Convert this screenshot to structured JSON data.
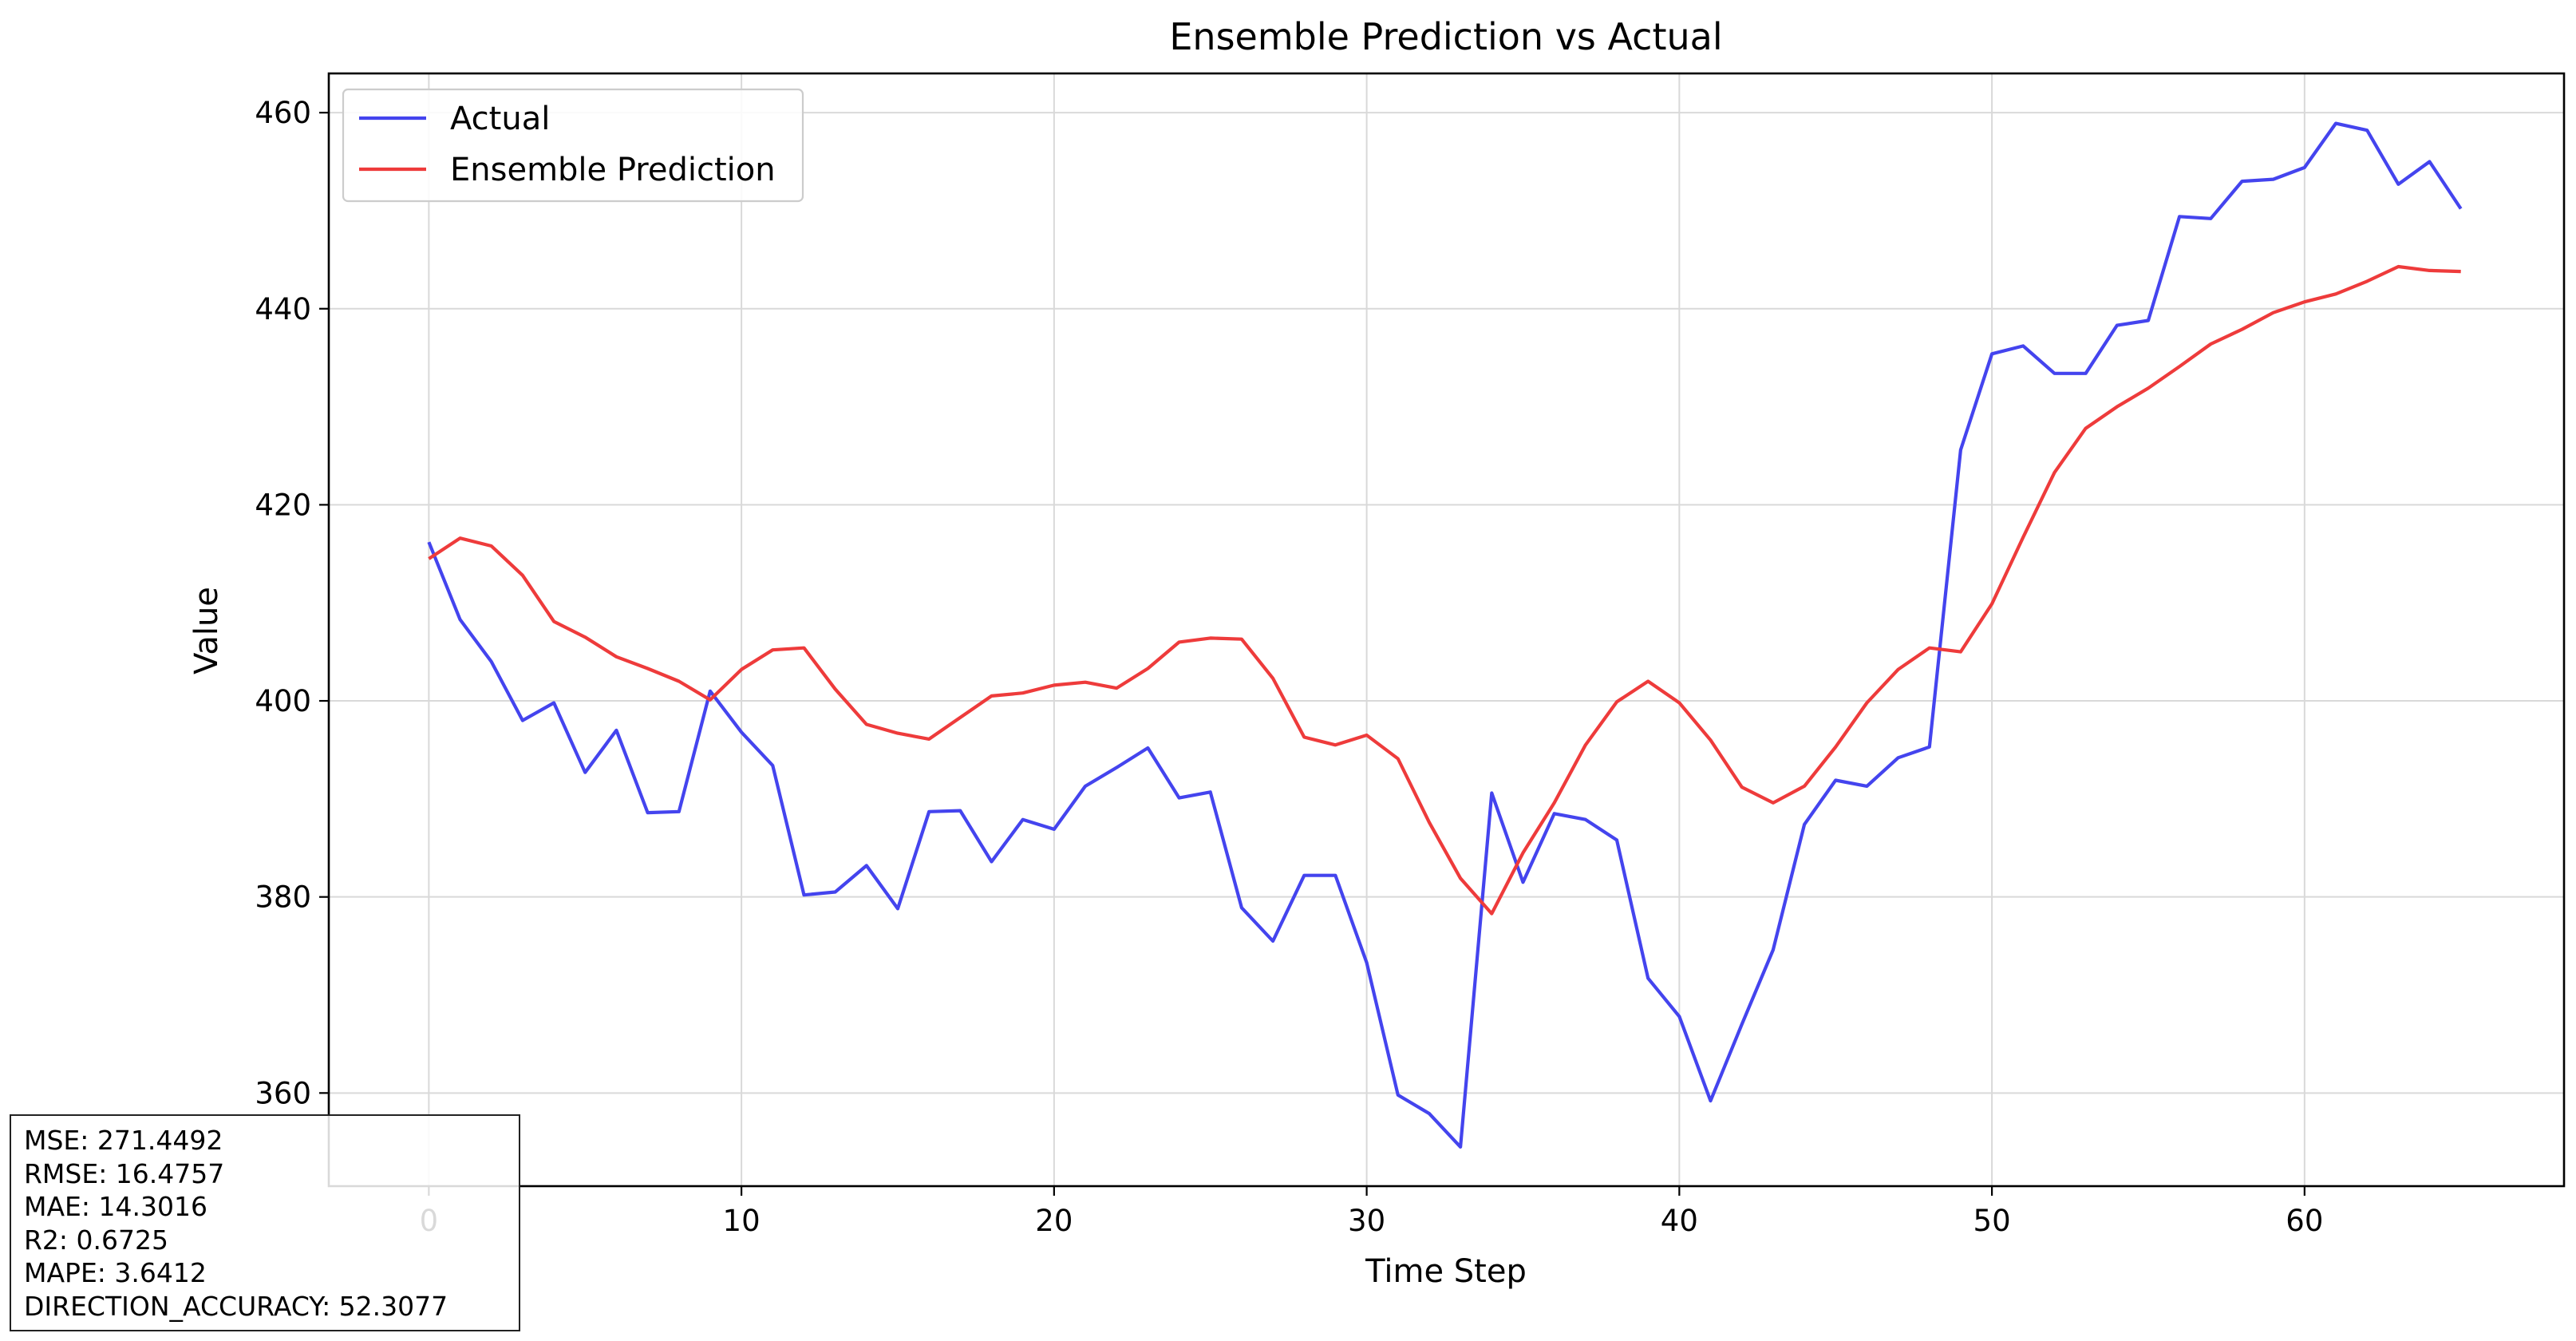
{
  "chart_data": {
    "type": "line",
    "title": "Ensemble Prediction vs Actual",
    "xlabel": "Time Step",
    "ylabel": "Value",
    "xlim": [
      -3.2,
      68.3
    ],
    "ylim": [
      350.5,
      464.0
    ],
    "xticks": [
      0,
      10,
      20,
      30,
      40,
      50,
      60
    ],
    "yticks": [
      360,
      380,
      400,
      420,
      440,
      460
    ],
    "grid": true,
    "legend": "top-left",
    "series": [
      {
        "name": "Actual",
        "color": "#4444ee",
        "x": [
          0,
          1,
          2,
          3,
          4,
          5,
          6,
          7,
          8,
          9,
          10,
          11,
          12,
          13,
          14,
          15,
          16,
          17,
          18,
          19,
          20,
          21,
          22,
          23,
          24,
          25,
          26,
          27,
          28,
          29,
          30,
          31,
          32,
          33,
          34,
          35,
          36,
          37,
          38,
          39,
          40,
          41,
          42,
          43,
          44,
          45,
          46,
          47,
          48,
          49,
          50,
          51,
          52,
          53,
          54,
          55,
          56,
          57,
          58,
          59,
          60,
          61,
          62,
          63,
          64,
          65
        ],
        "values": [
          416.2,
          408.3,
          404.0,
          398.0,
          399.8,
          392.7,
          397.0,
          388.6,
          388.7,
          401.0,
          396.8,
          393.4,
          380.2,
          380.5,
          383.2,
          378.8,
          388.7,
          388.8,
          383.6,
          387.9,
          386.9,
          391.3,
          393.2,
          395.2,
          390.1,
          390.7,
          378.9,
          375.5,
          382.2,
          382.2,
          373.3,
          359.8,
          357.9,
          354.5,
          390.6,
          381.5,
          388.5,
          387.9,
          385.8,
          371.7,
          367.8,
          359.2,
          367.0,
          374.6,
          387.4,
          391.9,
          391.3,
          394.2,
          395.3,
          425.6,
          435.4,
          436.2,
          433.4,
          433.4,
          438.3,
          438.8,
          449.4,
          449.2,
          453.0,
          453.2,
          454.4,
          458.9,
          458.2,
          452.7,
          455.0,
          450.2
        ]
      },
      {
        "name": "Ensemble Prediction",
        "color": "#ee3b3b",
        "x": [
          0,
          1,
          2,
          3,
          4,
          5,
          6,
          7,
          8,
          9,
          10,
          11,
          12,
          13,
          14,
          15,
          16,
          17,
          18,
          19,
          20,
          21,
          22,
          23,
          24,
          25,
          26,
          27,
          28,
          29,
          30,
          31,
          32,
          33,
          34,
          35,
          36,
          37,
          38,
          39,
          40,
          41,
          42,
          43,
          44,
          45,
          46,
          47,
          48,
          49,
          50,
          51,
          52,
          53,
          54,
          55,
          56,
          57,
          58,
          59,
          60,
          61,
          62,
          63,
          64,
          65
        ],
        "values": [
          414.5,
          416.6,
          415.8,
          412.8,
          408.1,
          406.5,
          404.5,
          403.3,
          402.0,
          400.1,
          403.2,
          405.2,
          405.4,
          401.2,
          397.6,
          396.7,
          396.1,
          398.3,
          400.5,
          400.8,
          401.6,
          401.9,
          401.3,
          403.3,
          406.0,
          406.4,
          406.3,
          402.3,
          396.3,
          395.5,
          396.5,
          394.1,
          387.6,
          381.9,
          378.3,
          384.5,
          389.6,
          395.5,
          399.9,
          402.0,
          399.8,
          396.0,
          391.2,
          389.6,
          391.3,
          395.3,
          399.8,
          403.2,
          405.4,
          405.0,
          409.9,
          416.7,
          423.3,
          427.8,
          430.0,
          431.9,
          434.1,
          436.4,
          437.9,
          439.6,
          440.7,
          441.5,
          442.8,
          444.3,
          443.9,
          443.8
        ]
      }
    ]
  },
  "metrics": [
    "MSE: 271.4492",
    "RMSE: 16.4757",
    "MAE: 14.3016",
    "R2: 0.6725",
    "MAPE: 3.6412",
    "DIRECTION_ACCURACY: 52.3077"
  ]
}
